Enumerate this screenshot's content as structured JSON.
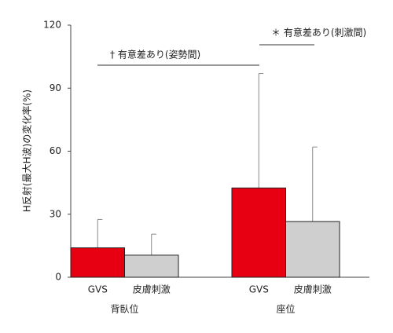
{
  "chart_data": {
    "type": "bar",
    "y_label": "H反射(最大H波)の変化率(%)",
    "groups": [
      "背臥位",
      "座位"
    ],
    "series": [
      {
        "name": "GVS",
        "color": "#e60012",
        "values": [
          14,
          42.5
        ],
        "errors": [
          13.5,
          54.5
        ]
      },
      {
        "name": "皮膚刺激",
        "color": "#d0cfcf",
        "values": [
          10.5,
          26.5
        ],
        "errors": [
          10,
          35.5
        ]
      }
    ],
    "ylim": [
      0,
      120
    ],
    "yticks": [
      0,
      30,
      60,
      90,
      120
    ],
    "annotations": [
      "† 有意差あり(姿勢間)",
      "＊ 有意差あり(刺激間)"
    ]
  }
}
